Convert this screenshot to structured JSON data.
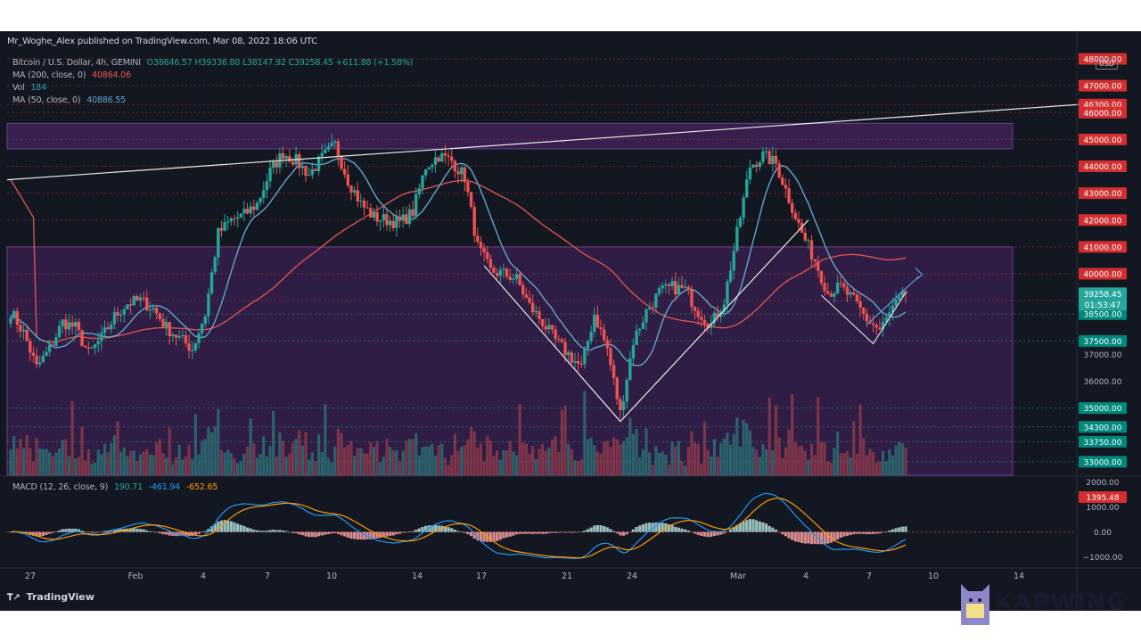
{
  "header": {
    "published": "Mr_Woghe_Alex published on TradingView.com, Mar 08, 2022 18:06 UTC"
  },
  "legend": {
    "symbol": "Bitcoin / U.S. Dollar, 4h, GEMINI",
    "ohlc": "O38646.57 H39336.80 L38147.92 C39258.45 +611.88 (+1.58%)",
    "ma200_label": "MA (200, close, 0)",
    "ma200_value": "40864.06",
    "vol_label": "Vol",
    "vol_value": "184",
    "ma50_label": "MA (50, close, 0)",
    "ma50_value": "40886.55",
    "macd_label": "MACD (12, 26, close, 9)",
    "macd_v1": "190.71",
    "macd_v2": "-461.94",
    "macd_v3": "-652.65"
  },
  "currency": "USD",
  "branding": {
    "tradingview": "TradingView",
    "kapwing": "KAPWING"
  },
  "colors": {
    "background": "#131722",
    "up": "#26a69a",
    "down": "#ef5350",
    "ma50": "#5fa8c8",
    "ma200": "#d9534f",
    "trend_white": "#e8e8e8",
    "zone": "#7b2fa0",
    "macd_line": "#2196f3",
    "signal_line": "#ff9800"
  },
  "chart_data": {
    "type": "candlestick",
    "symbol": "BTC/USD",
    "timeframe": "4h",
    "x_ticks": [
      "27",
      "Feb",
      "4",
      "7",
      "10",
      "14",
      "17",
      "21",
      "24",
      "Mar",
      "4",
      "7",
      "10",
      "14"
    ],
    "y_ticks": [
      48000,
      47000,
      46300,
      46000,
      45000,
      44000,
      43000,
      42000,
      41000,
      40000,
      39000,
      38500,
      37500,
      37000,
      36000,
      35000,
      34300,
      33750,
      33000
    ],
    "y_tick_labels": [
      "48000.00",
      "47000.00",
      "46300.00",
      "46000.00",
      "45000.00",
      "44000.00",
      "43000.00",
      "42000.00",
      "41000.00",
      "40000.00",
      "39000.00",
      "38500.00",
      "37500.00",
      "37000.00",
      "36000.00",
      "35000.00",
      "34300.00",
      "33750.00",
      "33000.00"
    ],
    "red_levels": [
      48000,
      47000,
      46300,
      46000,
      45000,
      44000,
      43000,
      42000,
      41000,
      40000,
      39000
    ],
    "green_levels": [
      38500,
      37500,
      35000,
      34300,
      33750,
      33000
    ],
    "price_range": [
      32500,
      48100
    ],
    "current_price": "39258.45",
    "countdown": "01:53:47",
    "anchors": [
      [
        0,
        38600
      ],
      [
        2,
        37800
      ],
      [
        4,
        36500
      ],
      [
        6,
        37200
      ],
      [
        8,
        38200
      ],
      [
        10,
        38000
      ],
      [
        12,
        37000
      ],
      [
        14,
        37600
      ],
      [
        16,
        38400
      ],
      [
        18,
        38900
      ],
      [
        20,
        39000
      ],
      [
        22,
        38700
      ],
      [
        24,
        38000
      ],
      [
        26,
        37600
      ],
      [
        28,
        37200
      ],
      [
        30,
        38500
      ],
      [
        32,
        41500
      ],
      [
        34,
        42000
      ],
      [
        36,
        42200
      ],
      [
        38,
        42600
      ],
      [
        40,
        43800
      ],
      [
        42,
        44500
      ],
      [
        44,
        44200
      ],
      [
        46,
        43700
      ],
      [
        48,
        44300
      ],
      [
        50,
        44800
      ],
      [
        52,
        43500
      ],
      [
        54,
        42600
      ],
      [
        56,
        42100
      ],
      [
        58,
        42000
      ],
      [
        60,
        41900
      ],
      [
        62,
        42300
      ],
      [
        64,
        44000
      ],
      [
        66,
        44400
      ],
      [
        68,
        44200
      ],
      [
        70,
        43600
      ],
      [
        72,
        41000
      ],
      [
        74,
        40100
      ],
      [
        76,
        40000
      ],
      [
        78,
        39800
      ],
      [
        80,
        38800
      ],
      [
        82,
        38200
      ],
      [
        84,
        37500
      ],
      [
        86,
        37000
      ],
      [
        88,
        36500
      ],
      [
        90,
        38500
      ],
      [
        92,
        37200
      ],
      [
        94,
        34800
      ],
      [
        96,
        37500
      ],
      [
        98,
        38600
      ],
      [
        100,
        39300
      ],
      [
        102,
        39500
      ],
      [
        104,
        39400
      ],
      [
        106,
        38600
      ],
      [
        108,
        38100
      ],
      [
        110,
        39000
      ],
      [
        112,
        41500
      ],
      [
        114,
        44000
      ],
      [
        116,
        44400
      ],
      [
        118,
        44100
      ],
      [
        120,
        42800
      ],
      [
        122,
        41500
      ],
      [
        124,
        40500
      ],
      [
        126,
        39300
      ],
      [
        128,
        39500
      ],
      [
        130,
        39000
      ],
      [
        132,
        38300
      ],
      [
        134,
        37900
      ],
      [
        136,
        38700
      ],
      [
        138,
        39258
      ]
    ],
    "volume_max": 680,
    "macd_range": [
      -1300,
      2200
    ],
    "macd_ticks": [
      2000,
      1000,
      0,
      -1000
    ],
    "macd_tick_labels": [
      "2000.00",
      "1000.00",
      "0.00",
      "−1000.00"
    ],
    "macd_current": "1395.48",
    "zones": [
      {
        "top": 45600,
        "bottom": 44650
      },
      {
        "top": 41000,
        "bottom": 32500
      }
    ]
  }
}
